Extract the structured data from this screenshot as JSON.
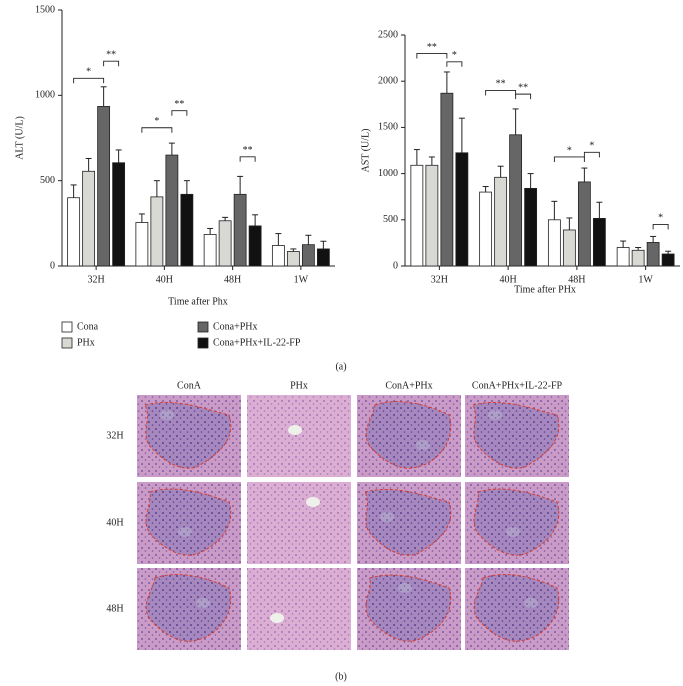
{
  "chart_data": [
    {
      "type": "bar",
      "y_label": "ALT (U/L)",
      "x_label": "Time after Phx",
      "categories": [
        "32H",
        "40H",
        "48H",
        "1W"
      ],
      "series": [
        {
          "name": "Cona",
          "color": "#ffffff",
          "values": [
            400,
            255,
            185,
            120
          ],
          "errors": [
            75,
            50,
            35,
            70
          ]
        },
        {
          "name": "PHx",
          "color": "#d9d9d4",
          "values": [
            555,
            405,
            265,
            85
          ],
          "errors": [
            75,
            95,
            20,
            15
          ]
        },
        {
          "name": "Cona+PHx",
          "color": "#666666",
          "values": [
            935,
            650,
            420,
            125
          ],
          "errors": [
            115,
            70,
            105,
            55
          ]
        },
        {
          "name": "Cona+PHx+IL-22-FP",
          "color": "#111111",
          "values": [
            605,
            420,
            235,
            100
          ],
          "errors": [
            75,
            80,
            65,
            45
          ]
        }
      ],
      "ylim": [
        0,
        1500
      ],
      "yticks": [
        0,
        500,
        1000,
        1500
      ],
      "annotations": [
        {
          "label": "*",
          "category": 0,
          "from": 0,
          "to": 2,
          "y": 1100
        },
        {
          "label": "**",
          "category": 0,
          "from": 2,
          "to": 3,
          "y": 1200
        },
        {
          "label": "*",
          "category": 1,
          "from": 0,
          "to": 2,
          "y": 810
        },
        {
          "label": "**",
          "category": 1,
          "from": 2,
          "to": 3,
          "y": 910
        },
        {
          "label": "**",
          "category": 2,
          "from": 2,
          "to": 3,
          "y": 640
        }
      ]
    },
    {
      "type": "bar",
      "y_label": "AST (U/L)",
      "x_label": "Time after PHx",
      "categories": [
        "32H",
        "40H",
        "48H",
        "1W"
      ],
      "series": [
        {
          "color": "#ffffff",
          "values": [
            1090,
            800,
            500,
            200
          ],
          "errors": [
            170,
            60,
            200,
            70
          ]
        },
        {
          "color": "#d9d9d4",
          "values": [
            1090,
            960,
            390,
            170
          ],
          "errors": [
            90,
            120,
            130,
            30
          ]
        },
        {
          "color": "#666666",
          "values": [
            1870,
            1420,
            910,
            255
          ],
          "errors": [
            230,
            280,
            150,
            65
          ]
        },
        {
          "color": "#111111",
          "values": [
            1225,
            840,
            515,
            130
          ],
          "errors": [
            375,
            160,
            175,
            30
          ]
        }
      ],
      "ylim": [
        0,
        2500
      ],
      "yticks": [
        0,
        500,
        1000,
        1500,
        2000,
        2500
      ],
      "annotations": [
        {
          "label": "**",
          "category": 0,
          "from": 0,
          "to": 2,
          "y": 2300
        },
        {
          "label": "*",
          "category": 0,
          "from": 2,
          "to": 3,
          "y": 2210
        },
        {
          "label": "**",
          "category": 1,
          "from": 0,
          "to": 2,
          "y": 1900
        },
        {
          "label": "**",
          "category": 1,
          "from": 2,
          "to": 3,
          "y": 1860
        },
        {
          "label": "*",
          "category": 2,
          "from": 0,
          "to": 2,
          "y": 1180
        },
        {
          "label": "*",
          "category": 2,
          "from": 2,
          "to": 3,
          "y": 1230
        },
        {
          "label": "*",
          "category": 3,
          "from": 2,
          "to": 3,
          "y": 450
        }
      ]
    }
  ],
  "panel_labels": [
    "(a)",
    "(b)"
  ],
  "histology": {
    "columns": [
      "ConA",
      "PHx",
      "ConA+PHx",
      "ConA+PHx+IL-22-FP"
    ],
    "rows": [
      "32H",
      "40H",
      "48H"
    ]
  }
}
